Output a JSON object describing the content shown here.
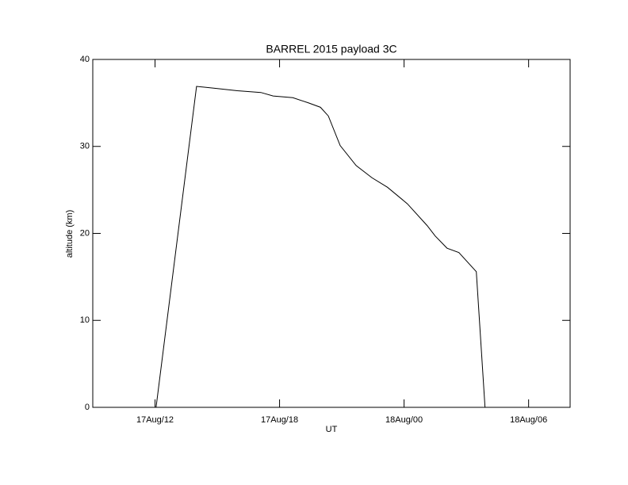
{
  "chart_data": {
    "type": "line",
    "title": "BARREL 2015 payload 3C",
    "x_label": "UT",
    "y_label": "altitude (km)",
    "x": [
      10.1,
      12.05,
      14.0,
      14.83,
      15.97,
      16.54,
      17.1,
      17.69,
      18.64,
      19.4,
      19.97,
      20.35,
      20.92,
      21.69,
      22.45,
      23.2,
      24.16,
      25.11,
      25.5,
      26.07,
      26.64,
      27.48,
      27.9,
      31.6
    ],
    "series": [
      {
        "name": "altitude",
        "color": "#000000",
        "values": [
          0,
          0,
          36.9,
          36.7,
          36.4,
          36.3,
          36.2,
          35.8,
          35.6,
          35.0,
          34.5,
          33.5,
          30.1,
          27.8,
          26.4,
          25.3,
          23.4,
          20.9,
          19.7,
          18.3,
          17.8,
          15.6,
          0,
          0
        ]
      }
    ],
    "xlim": [
      9,
      32
    ],
    "xticks": [
      {
        "value": 12,
        "label": "17Aug/12"
      },
      {
        "value": 18,
        "label": "17Aug/18"
      },
      {
        "value": 24,
        "label": "18Aug/00"
      },
      {
        "value": 30,
        "label": "18Aug/06"
      }
    ],
    "ylim": [
      0,
      40
    ],
    "yticks": [
      0,
      10,
      20,
      30,
      40
    ]
  }
}
